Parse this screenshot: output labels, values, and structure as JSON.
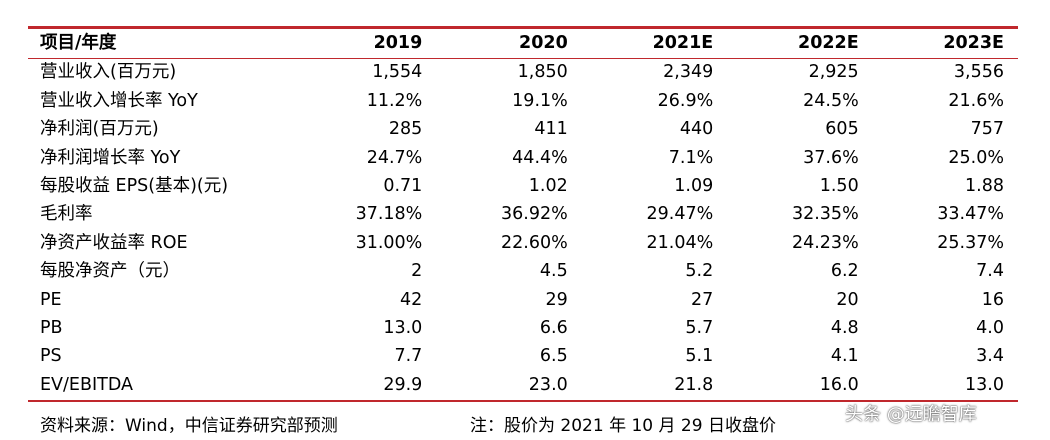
{
  "table": {
    "header": {
      "label": "项目/年度",
      "years": [
        "2019",
        "2020",
        "2021E",
        "2022E",
        "2023E"
      ]
    },
    "rows": [
      {
        "label": "营业收入(百万元)",
        "values": [
          "1,554",
          "1,850",
          "2,349",
          "2,925",
          "3,556"
        ]
      },
      {
        "label": "营业收入增长率 YoY",
        "values": [
          "11.2%",
          "19.1%",
          "26.9%",
          "24.5%",
          "21.6%"
        ]
      },
      {
        "label": "净利润(百万元)",
        "values": [
          "285",
          "411",
          "440",
          "605",
          "757"
        ]
      },
      {
        "label": "净利润增长率 YoY",
        "values": [
          "24.7%",
          "44.4%",
          "7.1%",
          "37.6%",
          "25.0%"
        ]
      },
      {
        "label": "每股收益 EPS(基本)(元)",
        "values": [
          "0.71",
          "1.02",
          "1.09",
          "1.50",
          "1.88"
        ]
      },
      {
        "label": "毛利率",
        "values": [
          "37.18%",
          "36.92%",
          "29.47%",
          "32.35%",
          "33.47%"
        ]
      },
      {
        "label": "净资产收益率 ROE",
        "values": [
          "31.00%",
          "22.60%",
          "21.04%",
          "24.23%",
          "25.37%"
        ]
      },
      {
        "label": "每股净资产（元）",
        "values": [
          "2",
          "4.5",
          "5.2",
          "6.2",
          "7.4"
        ]
      },
      {
        "label": "PE",
        "values": [
          "42",
          "29",
          "27",
          "20",
          "16"
        ]
      },
      {
        "label": "PB",
        "values": [
          "13.0",
          "6.6",
          "5.7",
          "4.8",
          "4.0"
        ]
      },
      {
        "label": "PS",
        "values": [
          "7.7",
          "6.5",
          "5.1",
          "4.1",
          "3.4"
        ]
      },
      {
        "label": "EV/EBITDA",
        "values": [
          "29.9",
          "23.0",
          "21.8",
          "16.0",
          "13.0"
        ]
      }
    ]
  },
  "footer": {
    "source": "资料来源：Wind，中信证券研究部预测",
    "note": "注：股价为 2021 年 10 月 29 日收盘价"
  },
  "watermark": "头条 @远瞻智库",
  "colors": {
    "rule": "#c0282d"
  }
}
